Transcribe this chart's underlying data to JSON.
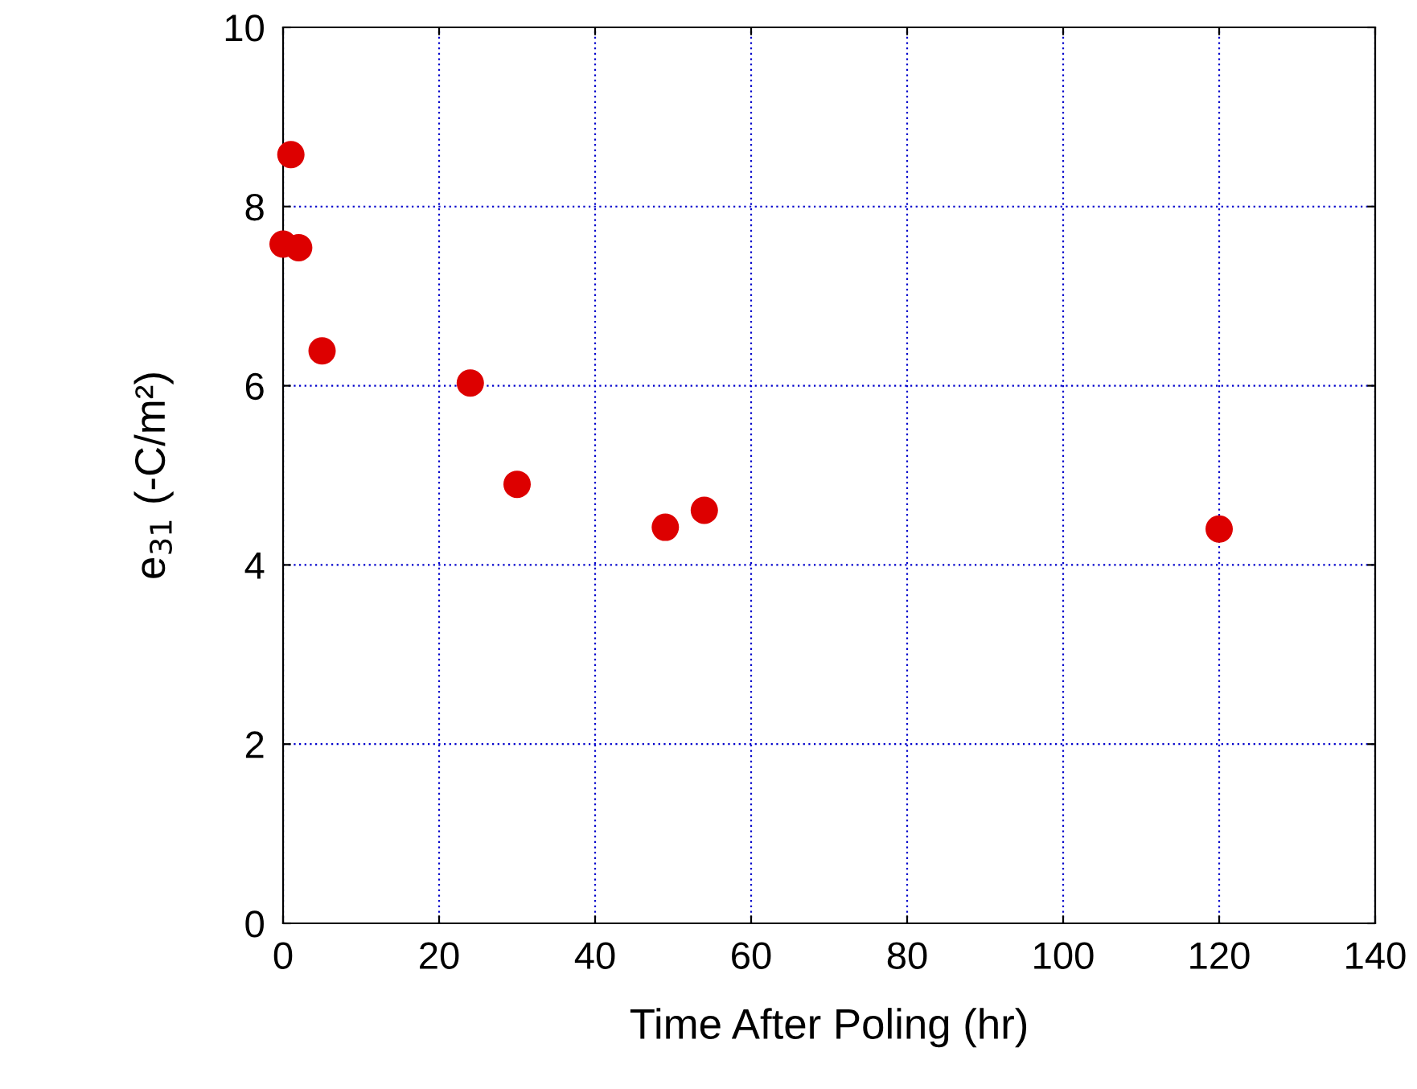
{
  "chart_data": {
    "type": "scatter",
    "xlabel": "Time After Poling (hr)",
    "ylabel": "e$_{31}$ (-C/m²)",
    "x": [
      0,
      1,
      2,
      5,
      24,
      30,
      49,
      54,
      120
    ],
    "series": [
      {
        "color": "#dd0000",
        "values": [
          7.58,
          8.58,
          7.54,
          6.39,
          6.03,
          4.9,
          4.42,
          4.61,
          4.4
        ]
      }
    ],
    "xlim": [
      0,
      140
    ],
    "xticks": [
      0,
      20,
      40,
      60,
      80,
      100,
      120,
      140
    ],
    "ylim": [
      0,
      10
    ],
    "yticks": [
      0,
      2,
      4,
      6,
      8,
      10
    ],
    "grid": true,
    "marker": "circle"
  }
}
